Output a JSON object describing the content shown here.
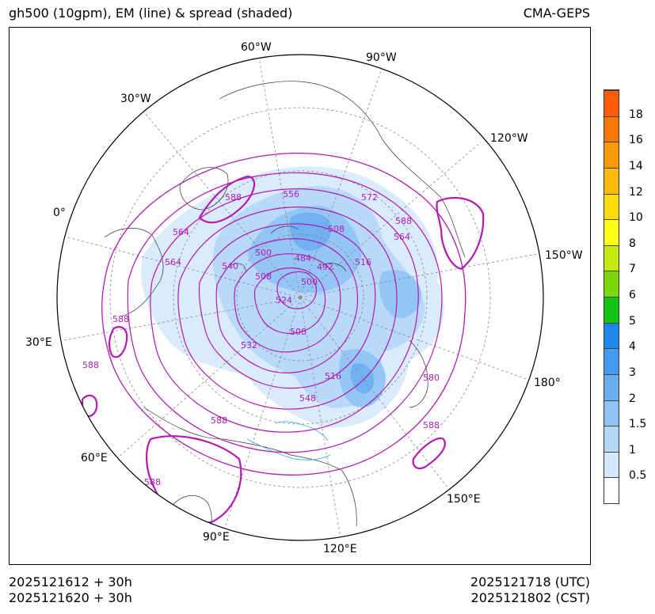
{
  "header": {
    "title_left": "gh500 (10gpm), EM (line) & spread (shaded)",
    "title_right": "CMA-GEPS"
  },
  "footer": {
    "init_utc": "2025121612 + 30h",
    "init_cst": "2025121620 + 30h",
    "valid_utc": "2025121718 (UTC)",
    "valid_cst": "2025121802 (CST)"
  },
  "map": {
    "projection": "north-polar-stereographic",
    "longitude_labels": [
      "60°W",
      "90°W",
      "30°W",
      "120°W",
      "0°",
      "150°W",
      "30°E",
      "180°",
      "60°E",
      "150°E",
      "90°E",
      "120°E"
    ],
    "contour_labels": [
      "588",
      "556",
      "572",
      "588",
      "564",
      "564",
      "564",
      "508",
      "516",
      "540",
      "500",
      "508",
      "500",
      "484",
      "492",
      "524",
      "588",
      "532",
      "508",
      "588",
      "516",
      "580",
      "548",
      "588",
      "588",
      "588"
    ],
    "colors": {
      "contour_line": "#b31ab3",
      "spread_light": "#cfe6fb",
      "spread_mid": "#9ccaf5",
      "spread_strong": "#6aaef0",
      "coast": "#333333",
      "grid": "#888888",
      "river": "#36b6d6"
    }
  },
  "colorbar": {
    "ticks": [
      "18",
      "16",
      "14",
      "12",
      "10",
      "8",
      "7",
      "6",
      "5",
      "4",
      "3",
      "2",
      "1.5",
      "1",
      "0.5"
    ],
    "levels": [
      0.5,
      1,
      1.5,
      2,
      3,
      4,
      5,
      6,
      7,
      8,
      10,
      12,
      14,
      16,
      18
    ],
    "colors": [
      "#ffffff",
      "#d6e9fb",
      "#b4d7f8",
      "#8fc3f4",
      "#6aaef0",
      "#449af1",
      "#1e88ea",
      "#13c313",
      "#7bd70a",
      "#c4ea0a",
      "#ffff14",
      "#fbdd05",
      "#f9bb05",
      "#f99905",
      "#f97705",
      "#ff5d05"
    ]
  }
}
